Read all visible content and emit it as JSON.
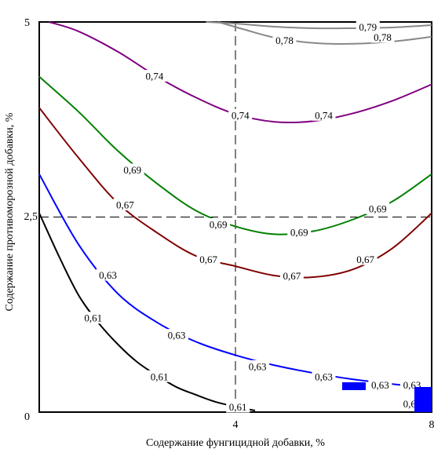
{
  "chart_data": {
    "type": "contour",
    "title": "",
    "xlabel": "Содержание фунгицидной добавки, %",
    "ylabel": "Содержание противоморозной добавки, %",
    "xlim": [
      0,
      8
    ],
    "ylim": [
      0,
      5
    ],
    "xticks": [
      "4",
      "8"
    ],
    "yticks": [
      "0",
      "2,5",
      "5"
    ],
    "grid": false,
    "legend": "none",
    "reference_lines": {
      "x": 4,
      "y": 2.5
    },
    "series": [
      {
        "level": "0,79",
        "color": "#888888",
        "x": [
          3.4,
          4.0,
          4.8,
          5.6,
          6.4,
          7.2,
          8.0
        ],
        "y": [
          5.0,
          4.98,
          4.94,
          4.92,
          4.92,
          4.93,
          4.96
        ],
        "labels": [
          [
            6.7,
            4.93
          ]
        ]
      },
      {
        "level": "0,78",
        "color": "#888888",
        "x": [
          3.65,
          4.2,
          4.8,
          5.6,
          6.4,
          7.2,
          8.0
        ],
        "y": [
          5.0,
          4.9,
          4.8,
          4.73,
          4.72,
          4.75,
          4.81
        ],
        "labels": [
          [
            5.0,
            4.76
          ],
          [
            7.0,
            4.8
          ]
        ]
      },
      {
        "level": "0,74",
        "color": "#800080",
        "x": [
          0.2,
          0.8,
          1.6,
          2.4,
          3.2,
          4.0,
          4.8,
          5.6,
          6.4,
          7.2,
          8.0
        ],
        "y": [
          5.0,
          4.88,
          4.62,
          4.3,
          4.03,
          3.82,
          3.72,
          3.73,
          3.83,
          3.99,
          4.2
        ],
        "labels": [
          [
            2.35,
            4.3
          ],
          [
            4.1,
            3.8
          ],
          [
            5.8,
            3.8
          ]
        ]
      },
      {
        "level": "0,69",
        "color": "#008000",
        "x": [
          0.0,
          0.8,
          1.6,
          2.4,
          3.2,
          4.0,
          4.8,
          5.6,
          6.4,
          7.2,
          8.0
        ],
        "y": [
          4.3,
          3.85,
          3.35,
          2.93,
          2.58,
          2.38,
          2.28,
          2.32,
          2.47,
          2.7,
          3.05
        ],
        "labels": [
          [
            1.9,
            3.1
          ],
          [
            3.65,
            2.4
          ],
          [
            5.3,
            2.3
          ],
          [
            6.9,
            2.6
          ]
        ]
      },
      {
        "level": "0,67",
        "color": "#800000",
        "x": [
          0.0,
          0.8,
          1.6,
          2.4,
          3.2,
          4.0,
          4.8,
          5.6,
          6.4,
          7.2,
          8.0
        ],
        "y": [
          3.9,
          3.26,
          2.68,
          2.3,
          2.0,
          1.87,
          1.75,
          1.73,
          1.83,
          2.1,
          2.55
        ],
        "labels": [
          [
            1.75,
            2.65
          ],
          [
            3.45,
            1.95
          ],
          [
            5.15,
            1.74
          ],
          [
            6.65,
            1.95
          ]
        ]
      },
      {
        "level": "0,63",
        "color": "#0000ff",
        "x": [
          0.0,
          0.8,
          1.6,
          2.4,
          3.2,
          4.0,
          4.8,
          5.6,
          6.4,
          7.2,
          7.8
        ],
        "y": [
          3.05,
          2.15,
          1.52,
          1.15,
          0.9,
          0.73,
          0.6,
          0.5,
          0.42,
          0.36,
          0.32
        ],
        "labels": [
          [
            1.4,
            1.75
          ],
          [
            2.8,
            0.98
          ],
          [
            4.45,
            0.58
          ],
          [
            5.8,
            0.45
          ],
          [
            6.95,
            0.34
          ],
          [
            7.6,
            0.34
          ],
          [
            7.6,
            0.1
          ]
        ]
      },
      {
        "level": "0,61",
        "color": "#000000",
        "x": [
          0.0,
          0.4,
          0.8,
          1.2,
          1.6,
          2.0,
          2.4,
          2.8,
          3.2,
          3.6,
          4.0,
          4.4
        ],
        "y": [
          2.55,
          2.0,
          1.5,
          1.15,
          0.87,
          0.64,
          0.47,
          0.32,
          0.22,
          0.13,
          0.07,
          0.02
        ],
        "labels": [
          [
            1.1,
            1.2
          ],
          [
            2.45,
            0.45
          ],
          [
            4.05,
            0.06
          ]
        ]
      }
    ]
  }
}
